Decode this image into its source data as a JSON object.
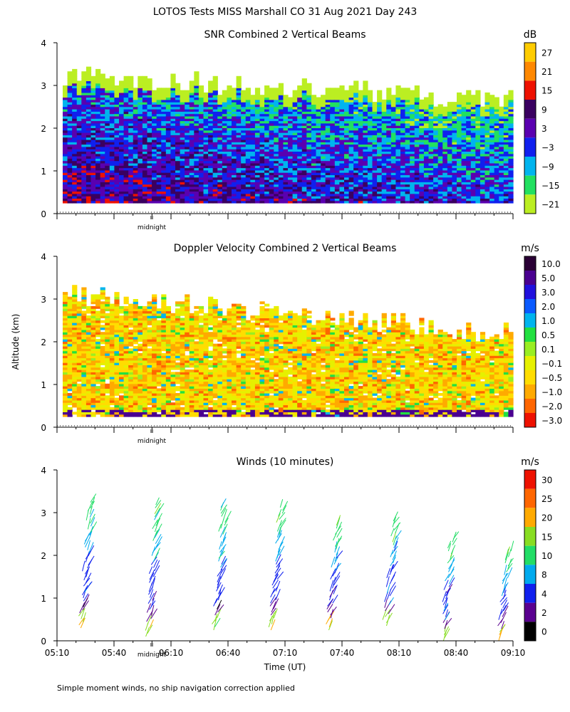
{
  "title": "LOTOS Tests MISS Marshall CO  31 Aug 2021 Day 243",
  "ylabel": "Altitude (km)",
  "xlabel": "Time (UT)",
  "footnote": "Simple moment winds, no ship navigation correction applied",
  "midnight_label": "midnight",
  "x_ticks": [
    "05:10",
    "05:40",
    "06:10",
    "06:40",
    "07:10",
    "07:40",
    "08:10",
    "08:40",
    "09:10"
  ],
  "y_ticks": [
    "0",
    "1",
    "2",
    "3",
    "4"
  ],
  "chart_data": [
    {
      "type": "heatmap",
      "title": "SNR Combined 2 Vertical Beams",
      "colorbar_unit": "dB",
      "colorbar_labels": [
        "27",
        "21",
        "15",
        "9",
        "3",
        "−3",
        "−9",
        "−15",
        "−21"
      ],
      "colorbar_colors": [
        "#ffcc00",
        "#ff8800",
        "#ee1100",
        "#3a0060",
        "#5a00b0",
        "#1020ee",
        "#00b4ee",
        "#22e060",
        "#bbee22"
      ],
      "value_range": [
        -21,
        30
      ],
      "xlim": [
        "05:10",
        "09:10"
      ],
      "ylim": [
        0,
        4
      ],
      "altitude_range_km": [
        0.25,
        3.2
      ]
    },
    {
      "type": "heatmap",
      "title": "Doppler Velocity Combined 2 Vertical Beams",
      "colorbar_unit": "m/s",
      "colorbar_labels": [
        "10.0",
        "5.0",
        "3.0",
        "2.0",
        "1.0",
        "0.5",
        "0.1",
        "−0.1",
        "−0.5",
        "−1.0",
        "−2.0",
        "−3.0"
      ],
      "colorbar_colors": [
        "#2a0035",
        "#4a0090",
        "#2010dd",
        "#0a5aff",
        "#00b4ee",
        "#22e040",
        "#99ee22",
        "#e6f000",
        "#ffdd00",
        "#ffaa00",
        "#ff6600",
        "#ee1100"
      ],
      "value_range": [
        -3,
        10
      ],
      "xlim": [
        "05:10",
        "09:10"
      ],
      "ylim": [
        0,
        4
      ],
      "altitude_range_km": [
        0.25,
        3.1
      ]
    },
    {
      "type": "scatter",
      "title": "Winds (10 minutes)",
      "colorbar_unit": "m/s",
      "colorbar_labels": [
        "30",
        "25",
        "20",
        "15",
        "10",
        "8",
        "4",
        "2",
        "0"
      ],
      "colorbar_colors": [
        "#ee1100",
        "#ff6600",
        "#ffaa00",
        "#88dd22",
        "#22dd66",
        "#00aaee",
        "#1020ee",
        "#5a0090",
        "#000000"
      ],
      "xlim": [
        "05:10",
        "09:10"
      ],
      "ylim": [
        0,
        4
      ],
      "profile_times": [
        "05:25",
        "06:00",
        "06:35",
        "07:05",
        "07:35",
        "08:05",
        "08:35",
        "09:05"
      ],
      "profile_top_km": [
        3.3,
        3.2,
        3.15,
        3.15,
        2.75,
        2.8,
        2.4,
        2.15
      ],
      "profile_bottom_km": [
        0.3,
        0.1,
        0.25,
        0.25,
        0.25,
        0.35,
        0.0,
        0.0
      ]
    }
  ]
}
